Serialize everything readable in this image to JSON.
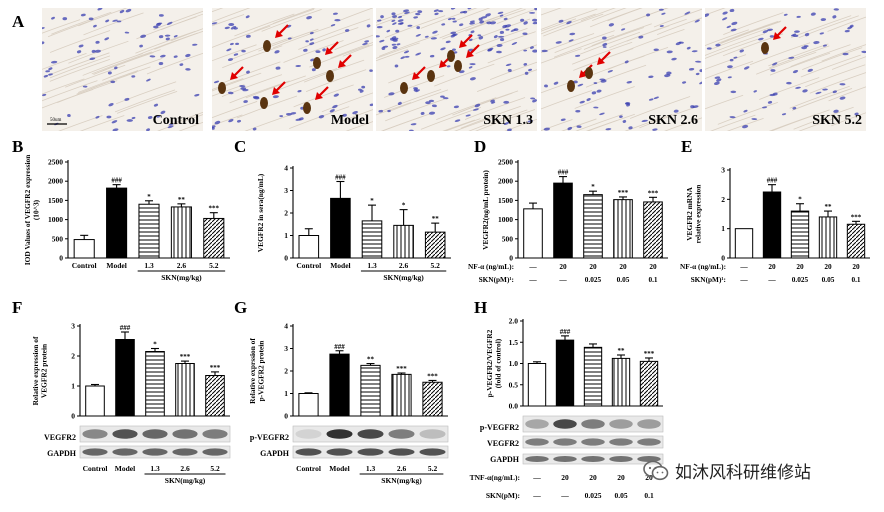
{
  "panel_letters": {
    "A": "A",
    "B": "B",
    "C": "C",
    "D": "D",
    "E": "E",
    "F": "F",
    "G": "G",
    "H": "H"
  },
  "micrographs": [
    {
      "label": "Control",
      "arrows": 0
    },
    {
      "label": "Model",
      "arrows": 6
    },
    {
      "label": "SKN 1.3",
      "arrows": 4
    },
    {
      "label": "SKN 2.6",
      "arrows": 2
    },
    {
      "label": "SKN 5.2",
      "arrows": 1
    }
  ],
  "scale_bar_label": "50um",
  "watermark": "如沐风科研维修站",
  "colors": {
    "arrow": "#e00000",
    "stain_blue": "#3a3fb0",
    "stain_brown": "#5a3410",
    "tissue": "#f4f0ea"
  },
  "chart_data": [
    {
      "type": "bar",
      "panel": "B",
      "ylabel": "IOD Values of VEGFR2 expression (10^3)",
      "categories": [
        "Control",
        "Model",
        "1.3",
        "2.6",
        "5.2"
      ],
      "values": [
        480,
        1820,
        1400,
        1330,
        1030
      ],
      "errors": [
        110,
        90,
        90,
        80,
        150
      ],
      "sig": [
        "",
        "###",
        "*",
        "**",
        "***"
      ],
      "ylim": [
        0,
        2500
      ],
      "yticks": [
        0,
        500,
        1000,
        1500,
        2000,
        2500
      ],
      "group_label": "SKN(mg/kg)"
    },
    {
      "type": "bar",
      "panel": "C",
      "ylabel": "VEGFR2 in sera(ng/mL)",
      "categories": [
        "Control",
        "Model",
        "1.3",
        "2.6",
        "5.2"
      ],
      "values": [
        1.0,
        2.65,
        1.65,
        1.45,
        1.15
      ],
      "errors": [
        0.3,
        0.75,
        0.7,
        0.7,
        0.4
      ],
      "sig": [
        "",
        "###",
        "*",
        "*",
        "**"
      ],
      "ylim": [
        0,
        4
      ],
      "yticks": [
        0,
        1,
        2,
        3,
        4
      ],
      "group_label": "SKN(mg/kg)"
    },
    {
      "type": "bar",
      "panel": "D",
      "ylabel": "VEGFR2(ng/mL protein)",
      "values": [
        1280,
        1950,
        1650,
        1520,
        1460
      ],
      "errors": [
        150,
        170,
        90,
        70,
        120
      ],
      "sig": [
        "",
        "###",
        "*",
        "***",
        "***"
      ],
      "ylim": [
        0,
        2500
      ],
      "yticks": [
        0,
        500,
        1000,
        1500,
        2000,
        2500
      ],
      "row_labels": [
        "TNF-α (ng/mL):",
        "SKN(pM)¹:"
      ],
      "row1": [
        "—",
        "20",
        "20",
        "20",
        "20"
      ],
      "row2": [
        "—",
        "—",
        "0.025",
        "0.05",
        "0.1"
      ]
    },
    {
      "type": "bar",
      "panel": "E",
      "ylabel": "VEGFR2 mRNA relative expression",
      "values": [
        1.0,
        2.25,
        1.6,
        1.4,
        1.15
      ],
      "errors": [
        0,
        0.25,
        0.25,
        0.2,
        0.1
      ],
      "sig": [
        "",
        "###",
        "*",
        "**",
        "***"
      ],
      "ylim": [
        0,
        3
      ],
      "yticks": [
        0,
        1,
        2,
        3
      ],
      "row_labels": [
        "TNF-α (ng/mL):",
        "SKN(pM)¹:"
      ],
      "row1": [
        "—",
        "20",
        "20",
        "20",
        "20"
      ],
      "row2": [
        "—",
        "—",
        "0.025",
        "0.05",
        "0.1"
      ]
    },
    {
      "type": "bar",
      "panel": "F",
      "ylabel": "Relative expression of VEGFR2 protein",
      "categories": [
        "Control",
        "Model",
        "1.3",
        "2.6",
        "5.2"
      ],
      "values": [
        1.0,
        2.55,
        2.15,
        1.75,
        1.35
      ],
      "errors": [
        0.05,
        0.25,
        0.1,
        0.08,
        0.12
      ],
      "sig": [
        "",
        "###",
        "*",
        "***",
        "***"
      ],
      "ylim": [
        0,
        3
      ],
      "yticks": [
        0,
        1,
        2,
        3
      ],
      "blots": [
        "VEGFR2",
        "GAPDH"
      ],
      "group_label": "SKN(mg/kg)"
    },
    {
      "type": "bar",
      "panel": "G",
      "ylabel": "Relative exprssion of p-VEGFR2 protein",
      "categories": [
        "Control",
        "Model",
        "1.3",
        "2.6",
        "5.2"
      ],
      "values": [
        1.0,
        2.75,
        2.25,
        1.85,
        1.5
      ],
      "errors": [
        0.03,
        0.15,
        0.08,
        0.06,
        0.08
      ],
      "sig": [
        "",
        "###",
        "**",
        "***",
        "***"
      ],
      "ylim": [
        0,
        4
      ],
      "yticks": [
        0,
        1,
        2,
        3,
        4
      ],
      "blots": [
        "p-VEGFR2",
        "GAPDH"
      ],
      "group_label": "SKN(mg/kg)"
    },
    {
      "type": "bar",
      "panel": "H",
      "ylabel": "p-VEGFR2/VEGFR2 (fold of control)",
      "values": [
        1.0,
        1.55,
        1.38,
        1.12,
        1.05
      ],
      "errors": [
        0.04,
        0.1,
        0.08,
        0.08,
        0.08
      ],
      "sig": [
        "",
        "###",
        "",
        "**",
        "***"
      ],
      "ylim": [
        0,
        2
      ],
      "yticks": [
        0.0,
        0.5,
        1.0,
        1.5,
        2.0
      ],
      "blots": [
        "p-VEGFR2",
        "VEGFR2",
        "GAPDH"
      ],
      "row_labels": [
        "TNF-α(ng/mL):",
        "SKN(pM):"
      ],
      "row1": [
        "—",
        "20",
        "20",
        "20",
        "20"
      ],
      "row2": [
        "—",
        "—",
        "0.025",
        "0.05",
        "0.1"
      ]
    }
  ]
}
